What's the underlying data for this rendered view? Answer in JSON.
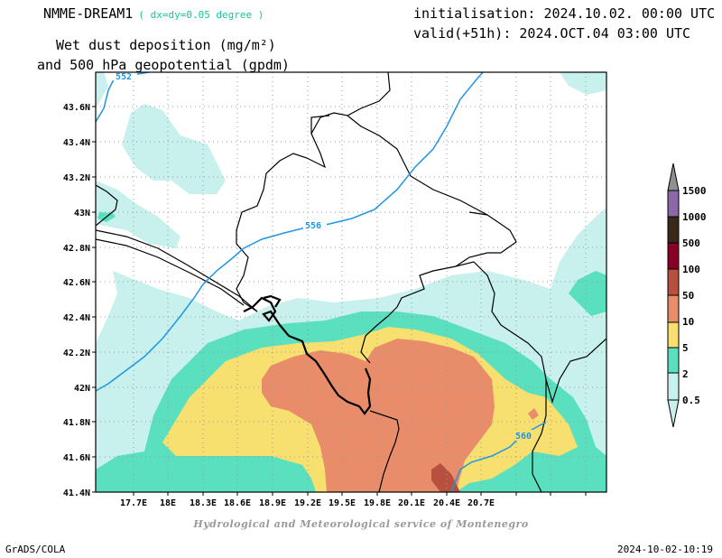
{
  "header": {
    "model": "NMME-DREAM1",
    "resolution": "( dx=dy=0.05 degree )",
    "variable_line1": "Wet dust deposition (mg/m²)",
    "variable_line2": "and 500 hPa geopotential (gpdm)",
    "init": "initialisation: 2024.10.02. 00:00 UTC",
    "valid": "valid(+51h): 2024.OCT.04 03:00 UTC"
  },
  "map": {
    "lon_ticks": [
      "17.7E",
      "18E",
      "18.3E",
      "18.6E",
      "18.9E",
      "19.2E",
      "19.5E",
      "19.8E",
      "20.1E",
      "20.4E",
      "20.7E"
    ],
    "lat_ticks": [
      "43.6N",
      "43.4N",
      "43.2N",
      "43N",
      "42.8N",
      "42.6N",
      "42.4N",
      "42.2N",
      "42N",
      "41.8N",
      "41.6N",
      "41.4N"
    ],
    "contour_labels": [
      "552",
      "556",
      "560"
    ],
    "contour_color": "#1e96e6",
    "colorbar": {
      "levels": [
        "0.5",
        "2",
        "5",
        "10",
        "50",
        "100",
        "500",
        "1000",
        "1500"
      ],
      "colors": [
        "#c8f0ec",
        "#5ae0be",
        "#f8e070",
        "#e88c6a",
        "#b85040",
        "#880028",
        "#3a2818",
        "#8c68a8",
        "#909090"
      ]
    }
  },
  "footer": {
    "credit": "Hydrological and Meteorological service of Montenegro",
    "left": "GrADS/COLA",
    "right": "2024-10-02-10:19"
  }
}
